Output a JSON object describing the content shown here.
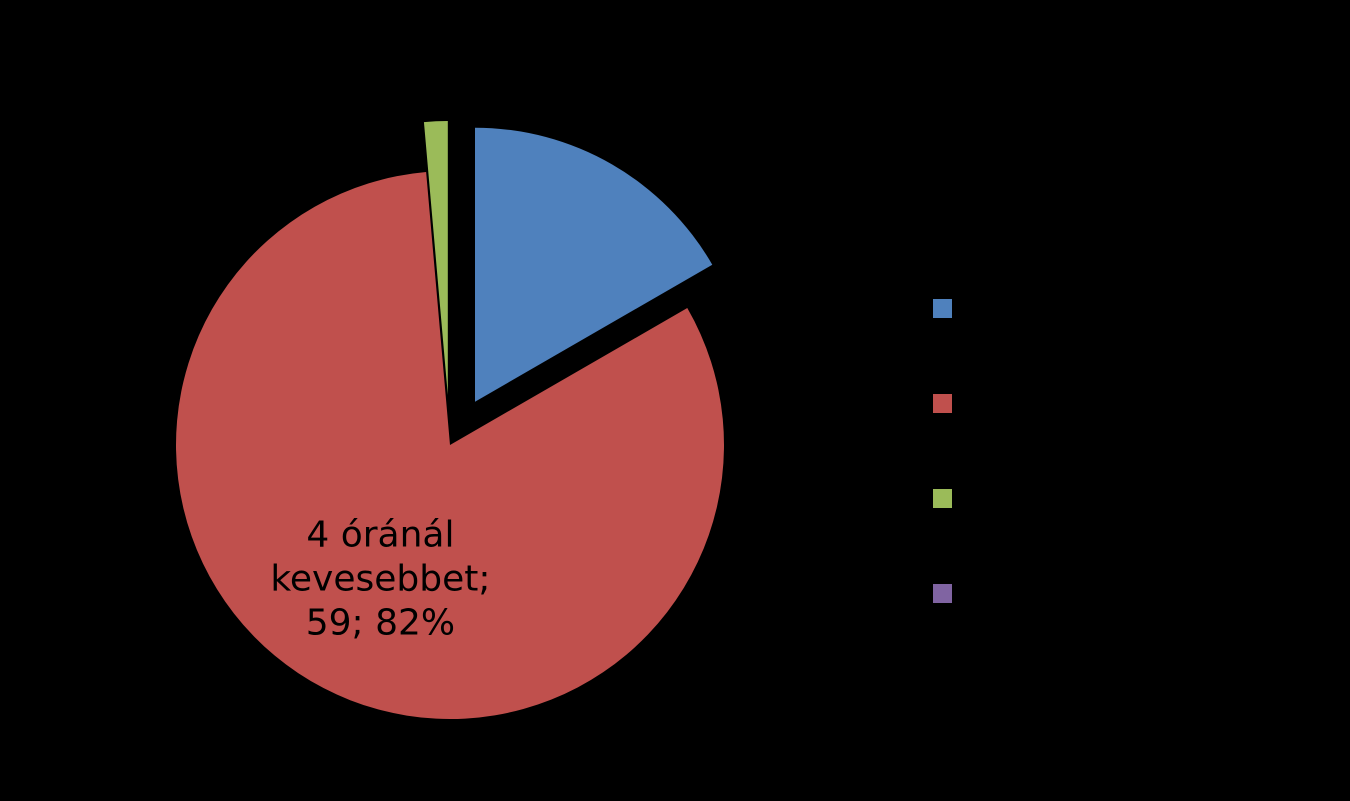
{
  "chart_data": {
    "type": "pie",
    "categories": [
      "",
      "4 óránál kevesebbet",
      "",
      ""
    ],
    "values": [
      12,
      59,
      1,
      0
    ],
    "percents": [
      "17%",
      "82%",
      "1%",
      "0%"
    ],
    "exploded": [
      true,
      false,
      true,
      true
    ],
    "colors": [
      "#4F81BD",
      "#C0504D",
      "#9BBB59",
      "#8064A2"
    ],
    "visible_labels": [
      {
        "slice": 1,
        "lines": [
          "4 óránál",
          "kevesebbet;",
          "59; 82%"
        ]
      }
    ],
    "legend_position": "right",
    "legend_labels": [
      "",
      "",
      "",
      ""
    ],
    "title": ""
  }
}
